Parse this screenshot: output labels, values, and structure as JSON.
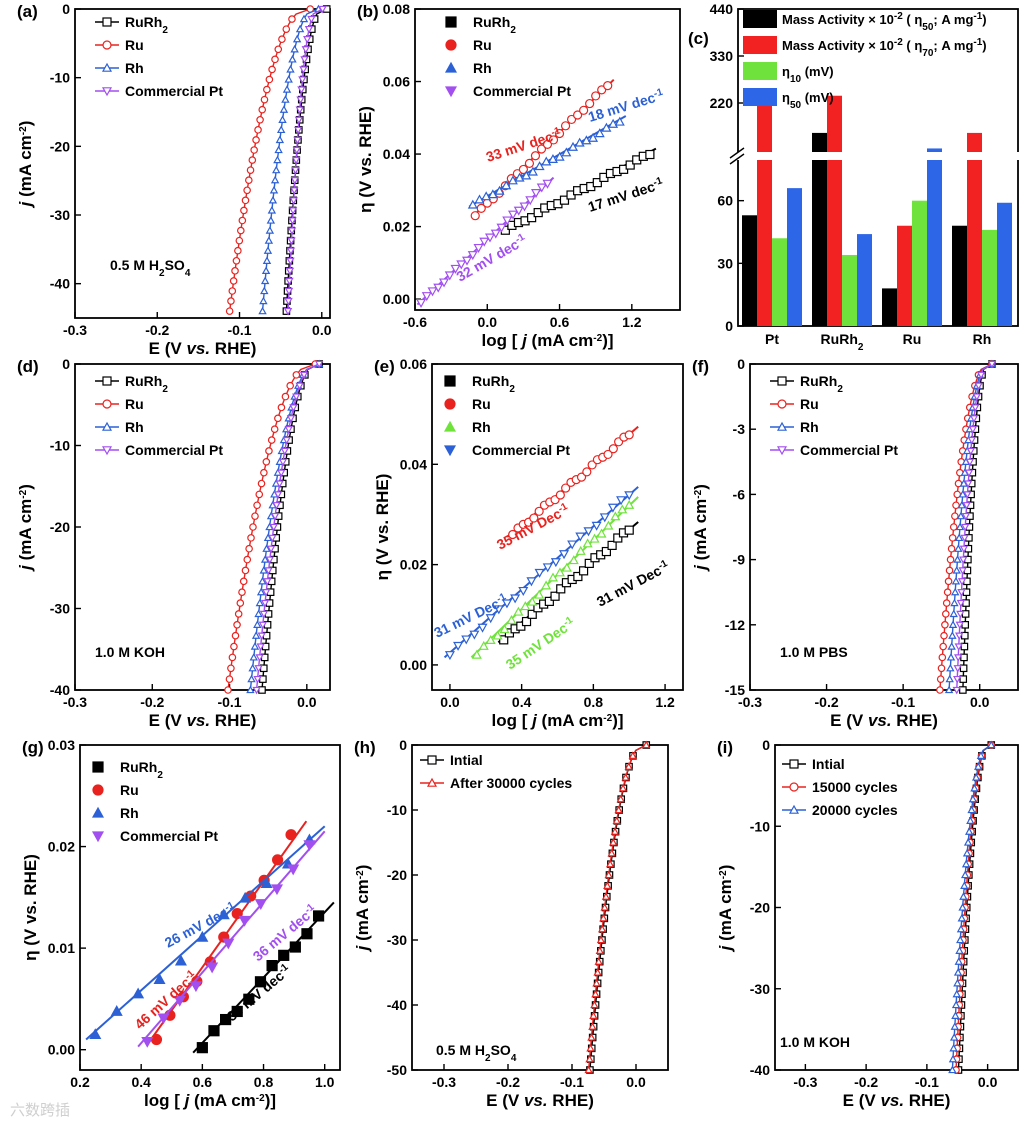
{
  "colors": {
    "RuRh2": "#000000",
    "Ru": "#e8231f",
    "Rh": "#2c61d6",
    "Pt": "#a24ff0",
    "PtLight": "#c08af5",
    "Green": "#6fe33b",
    "RedBar": "#f22222",
    "BlueBar": "#2d66e6"
  },
  "watermark": "六数跨插",
  "chart_data": [
    {
      "id": "a",
      "label": "(a)",
      "type": "line",
      "xlabel": "E (V vs. RHE)",
      "ylabel": "j (mA cm-2)",
      "xlim": [
        -0.3,
        0.01
      ],
      "ylim": [
        -45,
        0
      ],
      "xticks": [
        "-0.3",
        "-0.2",
        "-0.1",
        "0.0"
      ],
      "yticks": [
        "0",
        "-10",
        "-20",
        "-30",
        "-40"
      ],
      "note": "0.5 M H2SO4",
      "legend": [
        "RuRh2",
        "Ru",
        "Rh",
        "Commercial Pt"
      ],
      "series": [
        {
          "name": "RuRh2",
          "onset": -0.01,
          "slope_end": -0.043,
          "jmin": -44
        },
        {
          "name": "Ru",
          "onset": -0.03,
          "slope_end": -0.112,
          "jmin": -44
        },
        {
          "name": "Rh",
          "onset": -0.02,
          "slope_end": -0.072,
          "jmin": -44
        },
        {
          "name": "Commercial Pt",
          "onset": -0.015,
          "slope_end": -0.041,
          "jmin": -44
        }
      ]
    },
    {
      "id": "b",
      "label": "(b)",
      "type": "scatter",
      "xlabel": "log [ j (mA cm-2)]",
      "ylabel": "η (V vs. RHE)",
      "xlim": [
        -0.6,
        1.6
      ],
      "ylim": [
        -0.003,
        0.08
      ],
      "xticks": [
        "-0.6",
        "0.0",
        "0.6",
        "1.2"
      ],
      "yticks": [
        "0.00",
        "0.02",
        "0.04",
        "0.06",
        "0.08"
      ],
      "legend": [
        "RuRh2",
        "Ru",
        "Rh",
        "Commercial Pt"
      ],
      "annotations": [
        {
          "text": "33 mV dec-1",
          "series": "Ru"
        },
        {
          "text": "18 mV dec-1",
          "series": "Rh"
        },
        {
          "text": "17 mV dec-1",
          "series": "RuRh2"
        },
        {
          "text": "32 mV dec-1",
          "series": "Commercial Pt"
        }
      ],
      "series": [
        {
          "name": "RuRh2",
          "x": [
            0.15,
            1.35
          ],
          "y": [
            0.019,
            0.04
          ]
        },
        {
          "name": "Ru",
          "x": [
            -0.1,
            1.0
          ],
          "y": [
            0.023,
            0.059
          ]
        },
        {
          "name": "Rh",
          "x": [
            -0.12,
            1.1
          ],
          "y": [
            0.026,
            0.049
          ]
        },
        {
          "name": "Commercial Pt",
          "x": [
            -0.55,
            0.5
          ],
          "y": [
            -0.001,
            0.032
          ]
        }
      ]
    },
    {
      "id": "c",
      "label": "(c)",
      "type": "bar",
      "categories": [
        "Pt",
        "RuRh2",
        "Ru",
        "Rh"
      ],
      "yticks_low": [
        "0",
        "30",
        "60"
      ],
      "yticks_high": [
        "220",
        "330",
        "440"
      ],
      "legend": [
        "Mass Activity × 10-2 ( η50; A mg-1)",
        "Mass Activity × 10-2 ( η70; A mg-1)",
        "η10 (mV)",
        "η50 (mV)"
      ],
      "series": [
        {
          "name": "Mass Activity η50",
          "values": [
            53,
            150,
            18,
            48
          ]
        },
        {
          "name": "Mass Activity η70",
          "values": [
            220,
            237,
            48,
            150
          ]
        },
        {
          "name": "η10",
          "values": [
            42,
            34,
            60,
            46
          ]
        },
        {
          "name": "η50",
          "values": [
            66,
            44,
            85,
            59
          ]
        }
      ]
    },
    {
      "id": "d",
      "label": "(d)",
      "type": "line",
      "xlabel": "E (V vs. RHE)",
      "ylabel": "j (mA cm-2)",
      "xlim": [
        -0.3,
        0.03
      ],
      "ylim": [
        -40,
        0
      ],
      "xticks": [
        "-0.3",
        "-0.2",
        "-0.1",
        "0.0"
      ],
      "yticks": [
        "0",
        "-10",
        "-20",
        "-30",
        "-40"
      ],
      "note": "1.0 M KOH",
      "legend": [
        "RuRh2",
        "Ru",
        "Rh",
        "Commercial Pt"
      ],
      "series": [
        {
          "name": "RuRh2",
          "onset": 0.0,
          "slope_end": -0.058,
          "jmin": -40
        },
        {
          "name": "Ru",
          "onset": -0.005,
          "slope_end": -0.102,
          "jmin": -40
        },
        {
          "name": "Rh",
          "onset": 0.0,
          "slope_end": -0.073,
          "jmin": -40
        },
        {
          "name": "Commercial Pt",
          "onset": 0.0,
          "slope_end": -0.065,
          "jmin": -40
        }
      ]
    },
    {
      "id": "e",
      "label": "(e)",
      "type": "scatter",
      "xlabel": "log [ j (mA cm-2)]",
      "ylabel": "η (V vs. RHE)",
      "xlim": [
        -0.1,
        1.3
      ],
      "ylim": [
        -0.005,
        0.06
      ],
      "xticks": [
        "0.0",
        "0.4",
        "0.8",
        "1.2"
      ],
      "yticks": [
        "0.00",
        "0.02",
        "0.04",
        "0.06"
      ],
      "legend": [
        "RuRh2",
        "Ru",
        "Rh",
        "Commercial Pt"
      ],
      "annotations": [
        {
          "text": "35 mV Dec-1",
          "series": "Ru"
        },
        {
          "text": "31 mV Dec-1",
          "series": "Commercial Pt"
        },
        {
          "text": "31 mV Dec-1",
          "series": "RuRh2"
        },
        {
          "text": "35 mV Dec-1",
          "series": "Rh"
        }
      ],
      "series": [
        {
          "name": "RuRh2",
          "x": [
            0.3,
            1.0
          ],
          "y": [
            0.005,
            0.027
          ]
        },
        {
          "name": "Ru",
          "x": [
            0.35,
            1.0
          ],
          "y": [
            0.026,
            0.046
          ]
        },
        {
          "name": "Rh",
          "x": [
            0.15,
            1.0
          ],
          "y": [
            0.002,
            0.032
          ]
        },
        {
          "name": "Commercial Pt",
          "x": [
            0.0,
            1.0
          ],
          "y": [
            0.002,
            0.034
          ]
        }
      ]
    },
    {
      "id": "f",
      "label": "(f)",
      "type": "line",
      "xlabel": "E (V vs. RHE)",
      "ylabel": "j (mA cm-2)",
      "xlim": [
        -0.3,
        0.05
      ],
      "ylim": [
        -15,
        0
      ],
      "xticks": [
        "-0.3",
        "-0.2",
        "-0.1",
        "0.0"
      ],
      "yticks": [
        "0",
        "-3",
        "-6",
        "-9",
        "-12",
        "-15"
      ],
      "note": "1.0 M PBS",
      "legend": [
        "RuRh2",
        "Ru",
        "Rh",
        "Commercial Pt"
      ],
      "series": [
        {
          "name": "RuRh2",
          "onset": 0.0,
          "slope_end": -0.022,
          "jmin": -15
        },
        {
          "name": "Ru",
          "onset": 0.0,
          "slope_end": -0.052,
          "jmin": -15
        },
        {
          "name": "Rh",
          "onset": 0.0,
          "slope_end": -0.04,
          "jmin": -15
        },
        {
          "name": "Commercial Pt",
          "onset": 0.0,
          "slope_end": -0.03,
          "jmin": -15
        }
      ]
    },
    {
      "id": "g",
      "label": "(g)",
      "type": "scatter",
      "xlabel": "log [ j (mA cm-2)]",
      "ylabel": "η (V vs. RHE)",
      "xlim": [
        0.2,
        1.05
      ],
      "ylim": [
        -0.002,
        0.03
      ],
      "xticks": [
        "0.2",
        "0.4",
        "0.6",
        "0.8",
        "1.0"
      ],
      "yticks": [
        "0.00",
        "0.01",
        "0.02",
        "0.03"
      ],
      "legend": [
        "RuRh2",
        "Ru",
        "Rh",
        "Commercial Pt"
      ],
      "annotations": [
        {
          "text": "26 mV dec-1",
          "series": "Rh"
        },
        {
          "text": "46 mV dec-1",
          "series": "Ru"
        },
        {
          "text": "36 mV dec-1",
          "series": "Commercial Pt"
        },
        {
          "text": "34 mV dec-1",
          "series": "RuRh2"
        }
      ],
      "series": [
        {
          "name": "RuRh2",
          "x": [
            0.6,
            0.98
          ],
          "y": [
            0.0002,
            0.013
          ]
        },
        {
          "name": "Ru",
          "x": [
            0.45,
            0.89
          ],
          "y": [
            0.001,
            0.021
          ]
        },
        {
          "name": "Rh",
          "x": [
            0.25,
            0.95
          ],
          "y": [
            0.0015,
            0.0205
          ]
        },
        {
          "name": "Commercial Pt",
          "x": [
            0.42,
            0.95
          ],
          "y": [
            0.0008,
            0.02
          ]
        }
      ]
    },
    {
      "id": "h",
      "label": "(h)",
      "type": "line",
      "xlabel": "E (V vs. RHE)",
      "ylabel": "j (mA cm-2)",
      "xlim": [
        -0.35,
        0.05
      ],
      "ylim": [
        -50,
        0
      ],
      "xticks": [
        "-0.3",
        "-0.2",
        "-0.1",
        "0.0"
      ],
      "yticks": [
        "0",
        "-10",
        "-20",
        "-30",
        "-40",
        "-50"
      ],
      "note": "0.5 M H2SO4",
      "legend": [
        "Intial",
        "After 30000 cycles"
      ],
      "series": [
        {
          "name": "Intial",
          "onset": 0.0,
          "slope_end": -0.072,
          "jmin": -50
        },
        {
          "name": "After 30000 cycles",
          "onset": 0.0,
          "slope_end": -0.074,
          "jmin": -50
        }
      ]
    },
    {
      "id": "i",
      "label": "(i)",
      "type": "line",
      "xlabel": "E (V vs. RHE)",
      "ylabel": "j (mA cm-2)",
      "xlim": [
        -0.35,
        0.05
      ],
      "ylim": [
        -40,
        0
      ],
      "xticks": [
        "-0.3",
        "-0.2",
        "-0.1",
        "0.0"
      ],
      "yticks": [
        "0",
        "-10",
        "-20",
        "-30",
        "-40"
      ],
      "note": "1.0 M KOH",
      "legend": [
        "Intial",
        "15000 cycles",
        "20000 cycles"
      ],
      "series": [
        {
          "name": "Intial",
          "onset": -0.01,
          "slope_end": -0.048,
          "jmin": -40
        },
        {
          "name": "15000 cycles",
          "onset": -0.01,
          "slope_end": -0.052,
          "jmin": -40
        },
        {
          "name": "20000 cycles",
          "onset": -0.01,
          "slope_end": -0.058,
          "jmin": -40
        }
      ]
    }
  ]
}
